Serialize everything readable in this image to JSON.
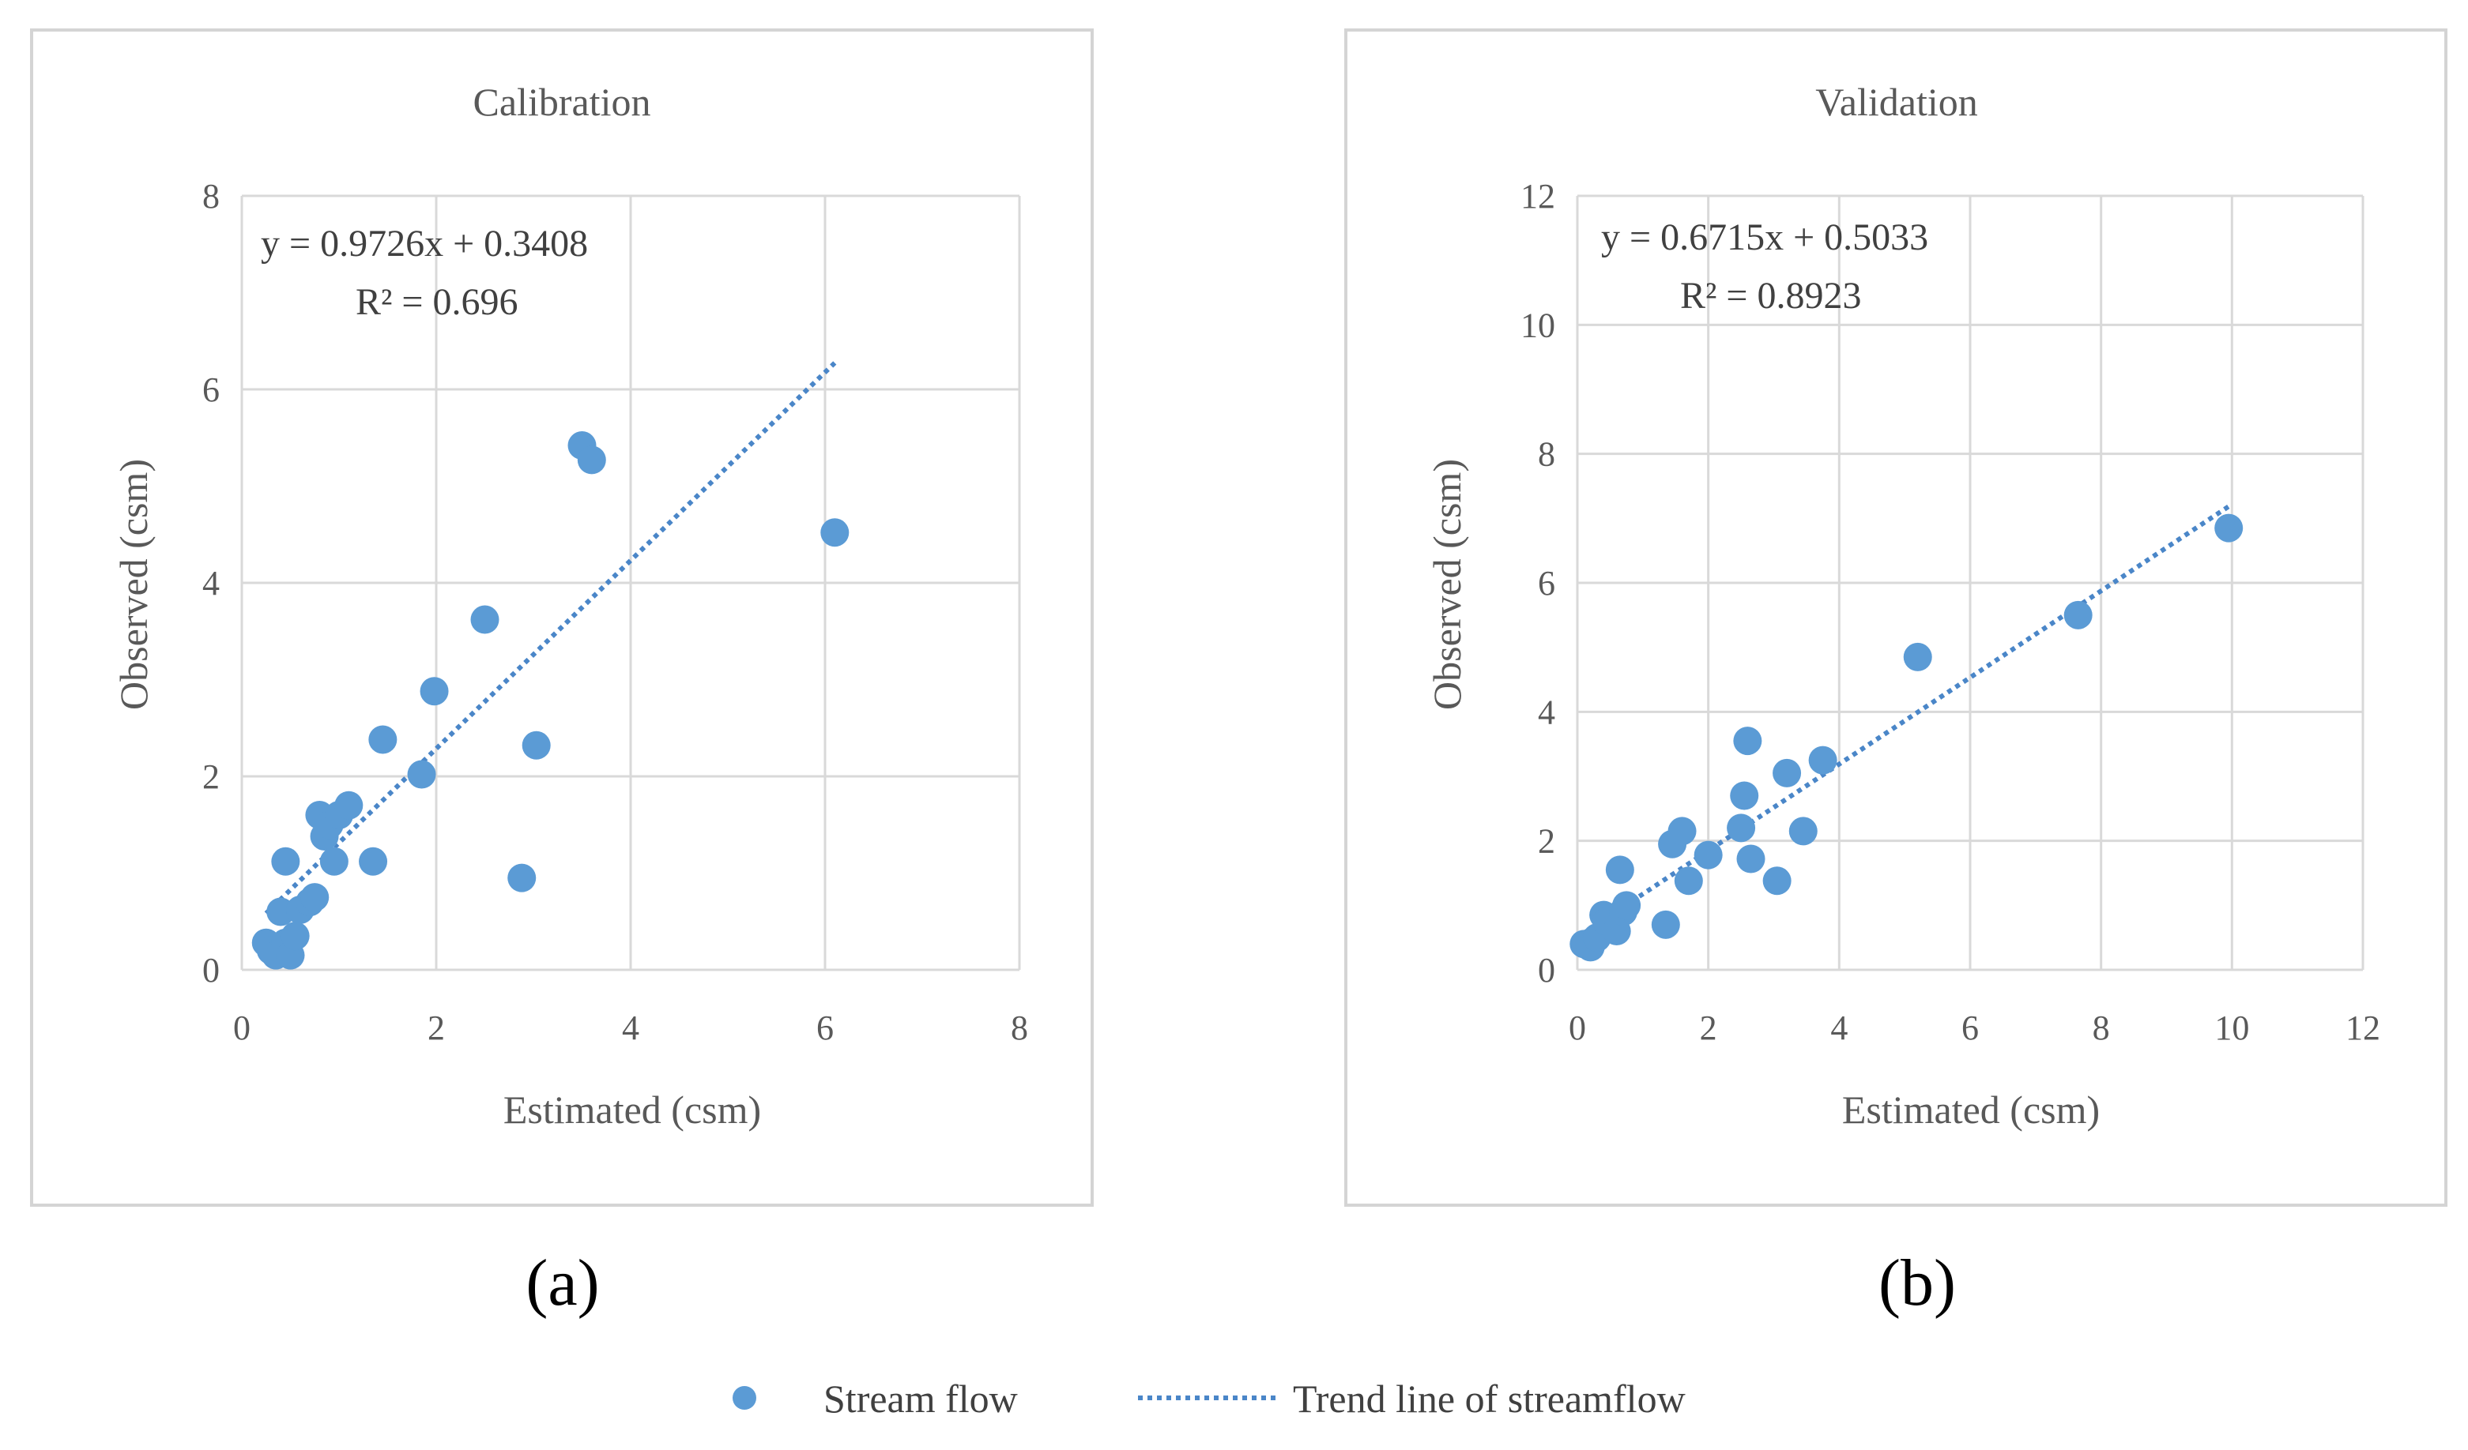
{
  "colors": {
    "point": "#5b9bd5",
    "trend": "#4a86c8"
  },
  "chart_data": [
    {
      "type": "scatter",
      "title": "Calibration",
      "xlabel": "Estimated (csm)",
      "ylabel": "Observed (csm)",
      "xlim": [
        0,
        8
      ],
      "ylim": [
        0,
        8
      ],
      "xticks": [
        0,
        2,
        4,
        6,
        8
      ],
      "yticks": [
        0,
        2,
        4,
        6,
        8
      ],
      "xtick_labels": [
        "0",
        "2",
        "4",
        "6",
        "8"
      ],
      "ytick_labels": [
        "0",
        "2",
        "4",
        "6",
        "8"
      ],
      "grid": true,
      "series": [
        {
          "name": "Stream flow",
          "x": [
            0.25,
            0.3,
            0.35,
            0.4,
            0.45,
            0.5,
            0.55,
            0.6,
            0.7,
            0.75,
            0.8,
            0.85,
            0.9,
            0.95,
            1.0,
            1.1,
            0.45,
            1.35,
            1.45,
            1.85,
            1.98,
            2.5,
            2.88,
            3.03,
            3.5,
            3.6,
            6.1
          ],
          "y": [
            0.28,
            0.2,
            0.15,
            0.6,
            0.28,
            0.15,
            0.35,
            0.62,
            0.7,
            0.75,
            1.6,
            1.38,
            1.5,
            1.12,
            1.6,
            1.7,
            1.12,
            1.12,
            2.38,
            2.02,
            2.88,
            3.62,
            0.95,
            2.32,
            5.42,
            5.27,
            4.52
          ]
        }
      ],
      "trendline": {
        "name": "Trend line of streamflow",
        "slope": 0.9726,
        "intercept": 0.3408,
        "x_range": [
          0.25,
          6.1
        ]
      },
      "equation": "y = 0.9726x + 0.3408",
      "r_squared": "R² = 0.696"
    },
    {
      "type": "scatter",
      "title": "Validation",
      "xlabel": "Estimated (csm)",
      "ylabel": "Observed (csm)",
      "xlim": [
        0,
        12
      ],
      "ylim": [
        0,
        12
      ],
      "xticks": [
        0,
        2,
        4,
        6,
        8,
        10,
        12
      ],
      "yticks": [
        0,
        2,
        4,
        6,
        8,
        10,
        12
      ],
      "xtick_labels": [
        "0",
        "2",
        "4",
        "6",
        "8",
        "10",
        "12"
      ],
      "ytick_labels": [
        "0",
        "2",
        "4",
        "6",
        "8",
        "10",
        "12"
      ],
      "grid": true,
      "series": [
        {
          "name": "Stream flow",
          "x": [
            0.1,
            0.2,
            0.3,
            0.4,
            0.45,
            0.6,
            0.65,
            0.7,
            0.75,
            1.35,
            1.45,
            1.6,
            1.7,
            2.0,
            2.5,
            2.55,
            2.6,
            2.65,
            3.05,
            3.2,
            3.45,
            3.75,
            5.2,
            7.65,
            9.95
          ],
          "y": [
            0.4,
            0.35,
            0.5,
            0.85,
            0.75,
            0.6,
            1.55,
            0.9,
            1.0,
            0.7,
            1.95,
            2.15,
            1.38,
            1.78,
            2.2,
            2.7,
            3.55,
            1.72,
            1.38,
            3.05,
            2.15,
            3.25,
            4.85,
            5.5,
            6.85
          ]
        }
      ],
      "trendline": {
        "name": "Trend line of streamflow",
        "slope": 0.6715,
        "intercept": 0.5033,
        "x_range": [
          0.1,
          9.95
        ]
      },
      "equation": "y = 0.6715x + 0.5033",
      "r_squared": "R² = 0.8923"
    }
  ],
  "panel_labels": [
    "(a)",
    "(b)"
  ],
  "legend": {
    "point_label": "Stream flow",
    "trend_label": "Trend line of streamflow"
  }
}
